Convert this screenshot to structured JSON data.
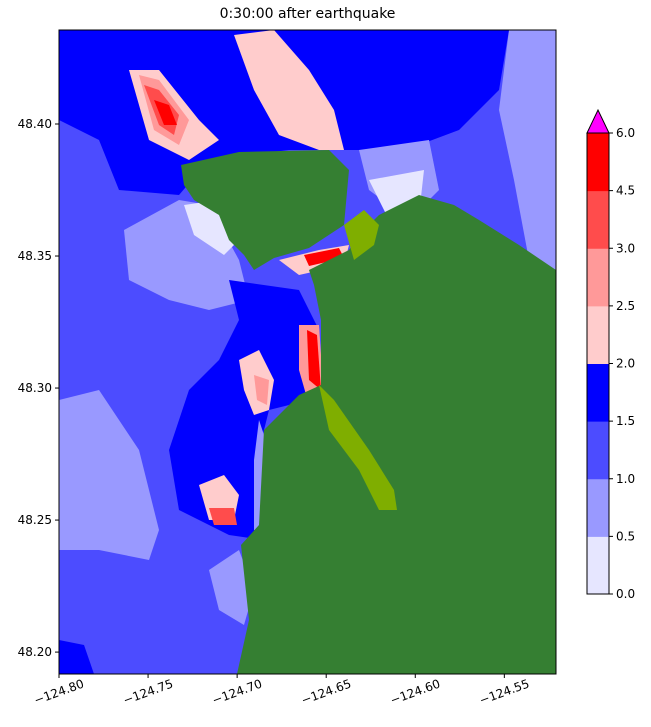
{
  "title": "0:30:00 after earthquake",
  "chart_data": {
    "type": "heatmap",
    "title": "0:30:00 after earthquake",
    "xlabel": "",
    "ylabel": "",
    "xlim": [
      -124.8,
      -124.521
    ],
    "ylim": [
      48.1917,
      48.4356
    ],
    "x_ticks": [
      "−124.80",
      "−124.75",
      "−124.70",
      "−124.65",
      "−124.60",
      "−124.55"
    ],
    "x_tick_values": [
      -124.8,
      -124.75,
      -124.7,
      -124.65,
      -124.6,
      -124.55
    ],
    "y_ticks": [
      "48.20",
      "48.25",
      "48.30",
      "48.35",
      "48.40"
    ],
    "y_tick_values": [
      48.2,
      48.25,
      48.3,
      48.35,
      48.4
    ],
    "land_color": "#357f32",
    "wetland_color": "#7fae00",
    "colorbar": {
      "levels": [
        0.0,
        0.5,
        1.0,
        1.5,
        2.0,
        2.5,
        3.0,
        4.5,
        6.0
      ],
      "tick_labels": [
        "0.0",
        "0.5",
        "1.0",
        "1.5",
        "2.0",
        "2.5",
        "3.0",
        "4.5",
        "6.0"
      ],
      "colors": [
        "#e6e6ff",
        "#9999ff",
        "#4c4cff",
        "#0000ff",
        "#ffcccc",
        "#ff9999",
        "#ff4c4c",
        "#ff0000"
      ],
      "extend_max_color": "#ff00ff",
      "placement": "right"
    }
  }
}
